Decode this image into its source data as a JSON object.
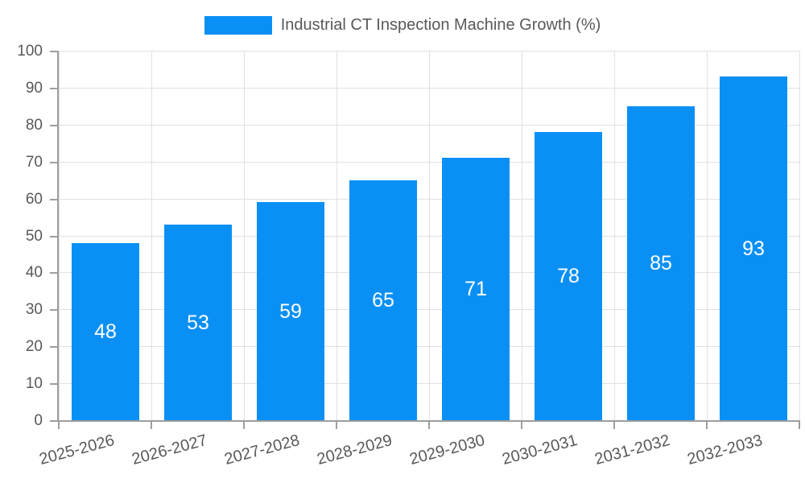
{
  "legend": {
    "label": "Industrial CT Inspection Machine Growth (%)",
    "swatch_color": "#0a90f5"
  },
  "chart_data": {
    "type": "bar",
    "title": "Industrial CT Inspection Machine Growth (%)",
    "categories": [
      "2025-2026",
      "2026-2027",
      "2027-2028",
      "2028-2029",
      "2029-2030",
      "2030-2031",
      "2031-2032",
      "2032-2033"
    ],
    "values": [
      48,
      53,
      59,
      65,
      71,
      78,
      85,
      93
    ],
    "xlabel": "",
    "ylabel": "",
    "ylim": [
      0,
      100
    ],
    "yticks": [
      0,
      10,
      20,
      30,
      40,
      50,
      60,
      70,
      80,
      90,
      100
    ],
    "grid": true,
    "legend_position": "top-center",
    "x_tick_rotation_deg": 15,
    "bar_color": "#0a90f5",
    "value_label_color": "#ffffff",
    "grid_color": "#e0e0e0",
    "axis_color": "#9e9e9e",
    "tick_label_color": "#595959"
  }
}
